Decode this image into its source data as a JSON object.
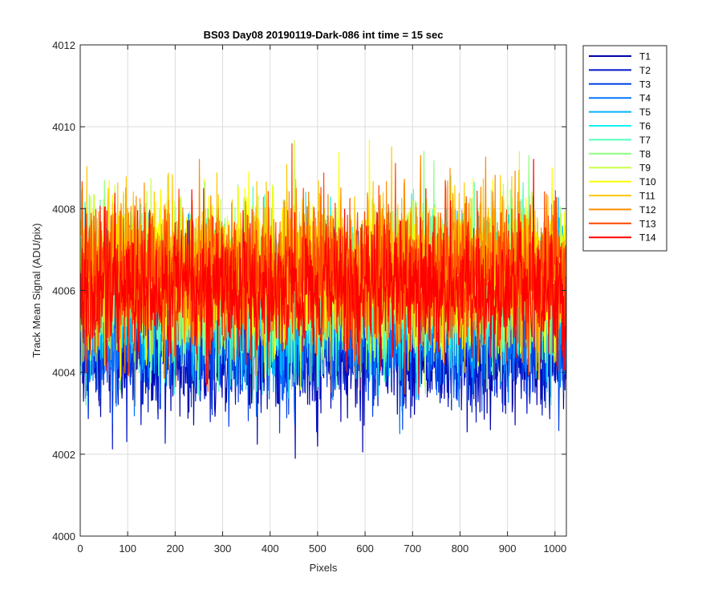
{
  "chart_data": {
    "type": "line",
    "title": "BS03 Day08 20190119-Dark-086 int time = 15 sec",
    "xlabel": "Pixels",
    "ylabel": "Track Mean Signal (ADU/pix)",
    "xlim": [
      0,
      1024
    ],
    "ylim": [
      4000,
      4012
    ],
    "xticks": [
      0,
      100,
      200,
      300,
      400,
      500,
      600,
      700,
      800,
      900,
      1000
    ],
    "yticks": [
      4000,
      4002,
      4004,
      4006,
      4008,
      4010,
      4012
    ],
    "grid": true,
    "legend_position": "outside-top-right",
    "n_points": 1024,
    "series": [
      {
        "name": "T1",
        "color": "#0000a8",
        "mean": 4004.6,
        "spread": 0.8,
        "min": 4001.9,
        "max": 4009.7
      },
      {
        "name": "T2",
        "color": "#0014c8",
        "mean": 4004.7,
        "spread": 0.8,
        "min": 4000.9,
        "max": 4008.9
      },
      {
        "name": "T3",
        "color": "#0040e8",
        "mean": 4004.9,
        "spread": 0.8,
        "min": 4002.2,
        "max": 4009.2
      },
      {
        "name": "T4",
        "color": "#0078ff",
        "mean": 4005.3,
        "spread": 0.9,
        "min": 4002.5,
        "max": 4009.6
      },
      {
        "name": "T5",
        "color": "#00b4ff",
        "mean": 4005.8,
        "spread": 0.9,
        "min": 4002.6,
        "max": 4011.3
      },
      {
        "name": "T6",
        "color": "#14f0f0",
        "mean": 4006.0,
        "spread": 0.9,
        "min": 4003.0,
        "max": 4010.6
      },
      {
        "name": "T7",
        "color": "#50ffbe",
        "mean": 4006.1,
        "spread": 0.9,
        "min": 4003.2,
        "max": 4010.2
      },
      {
        "name": "T8",
        "color": "#8cff82",
        "mean": 4006.2,
        "spread": 0.9,
        "min": 4003.2,
        "max": 4010.0
      },
      {
        "name": "T9",
        "color": "#c8ff46",
        "mean": 4006.3,
        "spread": 0.9,
        "min": 4003.0,
        "max": 4010.5
      },
      {
        "name": "T10",
        "color": "#ffff00",
        "mean": 4006.4,
        "spread": 0.9,
        "min": 4002.5,
        "max": 4011.4
      },
      {
        "name": "T11",
        "color": "#ffc800",
        "mean": 4006.5,
        "spread": 0.9,
        "min": 4002.8,
        "max": 4010.8
      },
      {
        "name": "T12",
        "color": "#ff8c00",
        "mean": 4006.6,
        "spread": 0.9,
        "min": 4002.7,
        "max": 4010.7
      },
      {
        "name": "T13",
        "color": "#ff4600",
        "mean": 4006.3,
        "spread": 0.9,
        "min": 4002.4,
        "max": 4010.4
      },
      {
        "name": "T14",
        "color": "#ff0000",
        "mean": 4006.0,
        "spread": 0.8,
        "min": 4002.3,
        "max": 4009.5
      }
    ]
  }
}
